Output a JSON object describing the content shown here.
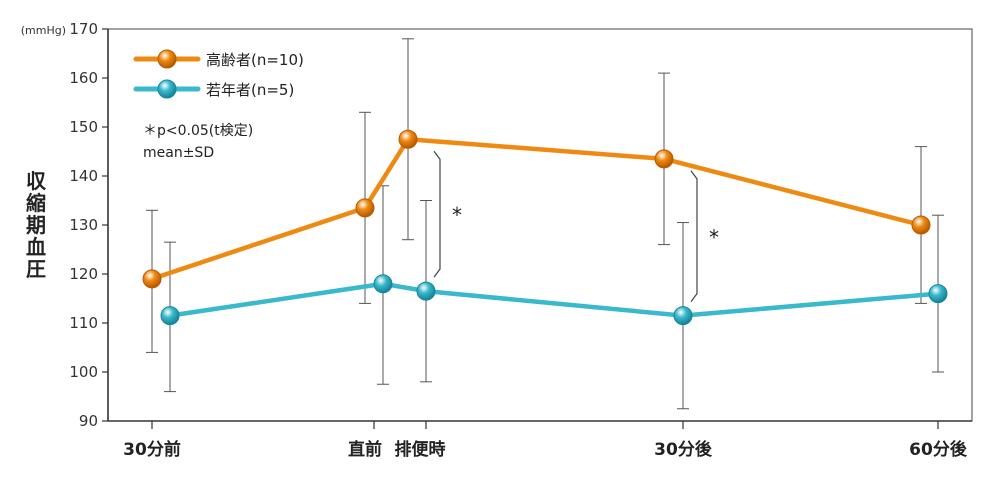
{
  "chart_data": {
    "type": "line",
    "title": "",
    "xlabel": "",
    "ylabel": "収縮期血圧",
    "y_unit": "(mmHg)",
    "ylim": [
      90,
      170
    ],
    "y_ticks": [
      90,
      100,
      110,
      120,
      130,
      140,
      150,
      160,
      170
    ],
    "categories": [
      "30分前",
      "直前",
      "排便時",
      "30分後",
      "60分後"
    ],
    "series": [
      {
        "name": "高齢者(n=10)",
        "color": "#ee8a12",
        "x": [
          0,
          1,
          2,
          3,
          4
        ],
        "mean": [
          119,
          133.5,
          147.5,
          143.5,
          130
        ],
        "sd_low": [
          104,
          114,
          127,
          126,
          114
        ],
        "sd_high": [
          133,
          153,
          168,
          161,
          146
        ]
      },
      {
        "name": "若年者(n=5)",
        "color": "#3ab8cc",
        "x": [
          0,
          1,
          2,
          3,
          4
        ],
        "mean": [
          111.5,
          118,
          116.5,
          111.5,
          116
        ],
        "sd_low": [
          96,
          97.5,
          98,
          92.5,
          100
        ],
        "sd_high": [
          126.5,
          138,
          135,
          130.5,
          132
        ]
      }
    ],
    "significance": [
      {
        "label": "*",
        "category": "排便時"
      },
      {
        "label": "*",
        "category": "30分後"
      }
    ],
    "notes": [
      "＊p<0.05(t検定)",
      "mean±SD"
    ],
    "legend_position": "top-left",
    "grid": false
  }
}
